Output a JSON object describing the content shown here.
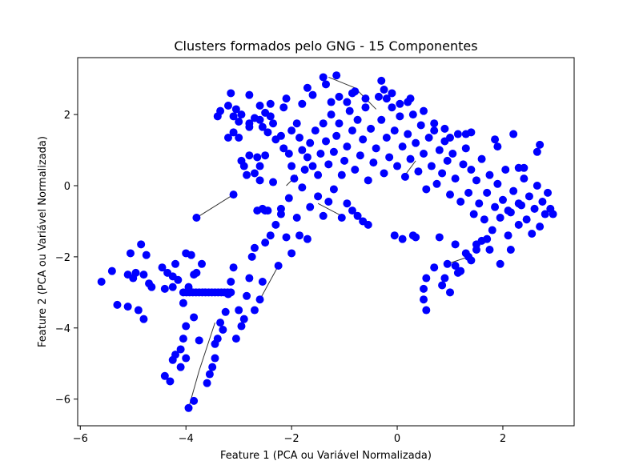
{
  "chart_data": {
    "type": "scatter",
    "title": "Clusters formados pelo GNG - 15 Componentes",
    "xlabel": "Feature 1 (PCA ou Variável Normalizada)",
    "ylabel": "Feature 2 (PCA ou Variável Normalizada)",
    "xlim": [
      -6.05,
      3.35
    ],
    "ylim": [
      -6.75,
      3.6
    ],
    "xticks": [
      -6,
      -4,
      -2,
      0,
      2
    ],
    "yticks": [
      -6,
      -4,
      -2,
      0,
      2
    ],
    "xtick_labels": [
      "−6",
      "−4",
      "−2",
      "0",
      "2"
    ],
    "ytick_labels": [
      "−6",
      "−4",
      "−2",
      "0",
      "2"
    ],
    "grid": false,
    "legend": "none",
    "marker_color": "#0000ff",
    "edge_color": "#333333",
    "points": [
      [
        -5.6,
        -2.7
      ],
      [
        -5.4,
        -2.4
      ],
      [
        -5.3,
        -3.35
      ],
      [
        -5.1,
        -2.5
      ],
      [
        -5.05,
        -1.9
      ],
      [
        -5.1,
        -3.4
      ],
      [
        -5.0,
        -2.6
      ],
      [
        -4.95,
        -2.45
      ],
      [
        -4.9,
        -3.5
      ],
      [
        -4.85,
        -1.65
      ],
      [
        -4.8,
        -2.5
      ],
      [
        -4.8,
        -3.75
      ],
      [
        -4.75,
        -1.95
      ],
      [
        -4.7,
        -2.75
      ],
      [
        -4.65,
        -2.85
      ],
      [
        -4.45,
        -2.3
      ],
      [
        -4.4,
        -2.9
      ],
      [
        -4.4,
        -5.35
      ],
      [
        -4.35,
        -2.45
      ],
      [
        -4.3,
        -5.5
      ],
      [
        -4.25,
        -2.85
      ],
      [
        -4.25,
        -2.55
      ],
      [
        -4.25,
        -4.9
      ],
      [
        -4.2,
        -2.2
      ],
      [
        -4.2,
        -4.75
      ],
      [
        -4.15,
        -2.65
      ],
      [
        -4.1,
        -4.6
      ],
      [
        -4.1,
        -5.1
      ],
      [
        -4.05,
        -3.3
      ],
      [
        -4.05,
        -4.3
      ],
      [
        -4.0,
        -1.9
      ],
      [
        -4.0,
        -3.95
      ],
      [
        -4.0,
        -4.85
      ],
      [
        -3.95,
        -2.85
      ],
      [
        -3.95,
        -6.25
      ],
      [
        -3.9,
        -1.95
      ],
      [
        -3.85,
        -2.5
      ],
      [
        -3.85,
        -3.7
      ],
      [
        -3.85,
        -6.05
      ],
      [
        -3.8,
        -2.45
      ],
      [
        -3.8,
        -0.9
      ],
      [
        -3.75,
        -4.35
      ],
      [
        -3.7,
        -2.2
      ],
      [
        -3.6,
        -5.55
      ],
      [
        -3.55,
        -5.3
      ],
      [
        -3.5,
        -5.1
      ],
      [
        -3.45,
        -4.85
      ],
      [
        -3.45,
        -4.45
      ],
      [
        -3.4,
        -4.3
      ],
      [
        -3.35,
        -3.85
      ],
      [
        -3.3,
        -4.05
      ],
      [
        -3.25,
        -3.55
      ],
      [
        -3.2,
        -3.05
      ],
      [
        -3.15,
        -2.7
      ],
      [
        -3.1,
        -2.3
      ],
      [
        -3.1,
        -0.25
      ],
      [
        -3.05,
        -4.3
      ],
      [
        -3.0,
        -3.5
      ],
      [
        -2.95,
        -3.95
      ],
      [
        -2.9,
        -3.75
      ],
      [
        -2.85,
        -3.1
      ],
      [
        -2.8,
        -2.6
      ],
      [
        -2.75,
        -2.0
      ],
      [
        -2.7,
        -1.75
      ],
      [
        -2.7,
        -3.5
      ],
      [
        -2.6,
        -3.2
      ],
      [
        -2.55,
        -2.7
      ],
      [
        -2.5,
        -1.6
      ],
      [
        -2.4,
        -1.4
      ],
      [
        -2.3,
        -1.1
      ],
      [
        -2.25,
        -2.25
      ],
      [
        -2.2,
        -0.8
      ],
      [
        -2.1,
        -1.45
      ],
      [
        -2.05,
        -0.35
      ],
      [
        -2.0,
        -1.9
      ],
      [
        -1.9,
        -0.9
      ],
      [
        -1.85,
        -1.4
      ],
      [
        -1.8,
        -0.05
      ],
      [
        -1.7,
        -1.5
      ],
      [
        -1.65,
        -0.6
      ],
      [
        -1.5,
        -0.3
      ],
      [
        -1.4,
        -0.85
      ],
      [
        -1.3,
        -0.45
      ],
      [
        -1.2,
        -0.1
      ],
      [
        -1.05,
        -0.9
      ],
      [
        -0.95,
        -0.5
      ],
      [
        -0.85,
        -0.7
      ],
      [
        -0.75,
        -0.85
      ],
      [
        -0.65,
        -1.0
      ],
      [
        -0.55,
        -1.1
      ],
      [
        -2.65,
        -0.7
      ],
      [
        -2.55,
        -0.65
      ],
      [
        -2.45,
        -0.7
      ],
      [
        -3.2,
        2.25
      ],
      [
        -3.35,
        2.1
      ],
      [
        -3.4,
        1.95
      ],
      [
        -3.1,
        1.95
      ],
      [
        -3.0,
        1.8
      ],
      [
        -2.95,
        2.0
      ],
      [
        -2.8,
        1.65
      ],
      [
        -2.8,
        1.75
      ],
      [
        -2.7,
        1.9
      ],
      [
        -2.6,
        1.85
      ],
      [
        -2.55,
        1.65
      ],
      [
        -2.45,
        1.5
      ],
      [
        -2.4,
        1.95
      ],
      [
        -2.35,
        1.75
      ],
      [
        -2.3,
        1.3
      ],
      [
        -2.2,
        1.4
      ],
      [
        -2.15,
        1.05
      ],
      [
        -2.05,
        0.9
      ],
      [
        -2.0,
        0.55
      ],
      [
        -2.0,
        1.55
      ],
      [
        -1.95,
        0.2
      ],
      [
        -1.9,
        1.75
      ],
      [
        -1.85,
        1.35
      ],
      [
        -1.8,
        1.0
      ],
      [
        -1.75,
        0.45
      ],
      [
        -1.7,
        0.8
      ],
      [
        -1.65,
        1.2
      ],
      [
        -1.6,
        0.55
      ],
      [
        -1.55,
        1.55
      ],
      [
        -1.5,
        0.3
      ],
      [
        -1.45,
        0.9
      ],
      [
        -1.4,
        1.75
      ],
      [
        -1.35,
        1.25
      ],
      [
        -1.3,
        0.6
      ],
      [
        -1.25,
        2.0
      ],
      [
        -1.2,
        0.95
      ],
      [
        -1.15,
        1.4
      ],
      [
        -1.1,
        1.75
      ],
      [
        -1.05,
        0.3
      ],
      [
        -1.0,
        0.7
      ],
      [
        -0.95,
        1.1
      ],
      [
        -0.9,
        2.1
      ],
      [
        -0.85,
        1.55
      ],
      [
        -0.8,
        0.45
      ],
      [
        -0.75,
        1.85
      ],
      [
        -0.7,
        0.85
      ],
      [
        -0.65,
        1.3
      ],
      [
        -0.6,
        2.2
      ],
      [
        -0.55,
        0.15
      ],
      [
        -0.5,
        1.6
      ],
      [
        -0.45,
        0.65
      ],
      [
        -0.4,
        1.05
      ],
      [
        -0.35,
        2.5
      ],
      [
        -0.3,
        1.85
      ],
      [
        -0.25,
        0.35
      ],
      [
        -0.2,
        1.35
      ],
      [
        -0.15,
        0.8
      ],
      [
        -0.1,
        2.2
      ],
      [
        -0.05,
        1.55
      ],
      [
        0.0,
        0.55
      ],
      [
        0.05,
        1.95
      ],
      [
        0.1,
        1.1
      ],
      [
        0.15,
        0.25
      ],
      [
        0.2,
        1.45
      ],
      [
        0.25,
        0.75
      ],
      [
        0.3,
        2.0
      ],
      [
        0.35,
        1.2
      ],
      [
        0.4,
        0.4
      ],
      [
        0.45,
        1.7
      ],
      [
        0.5,
        0.9
      ],
      [
        0.55,
        -0.1
      ],
      [
        0.6,
        1.35
      ],
      [
        0.65,
        0.55
      ],
      [
        0.7,
        1.55
      ],
      [
        0.75,
        0.05
      ],
      [
        0.8,
        1.0
      ],
      [
        0.85,
        0.35
      ],
      [
        0.9,
        1.25
      ],
      [
        0.95,
        0.7
      ],
      [
        1.0,
        -0.25
      ],
      [
        1.05,
        0.9
      ],
      [
        1.1,
        0.2
      ],
      [
        1.15,
        1.45
      ],
      [
        1.2,
        -0.45
      ],
      [
        1.25,
        0.6
      ],
      [
        1.3,
        1.05
      ],
      [
        1.35,
        -0.2
      ],
      [
        1.4,
        0.45
      ],
      [
        1.45,
        -0.8
      ],
      [
        1.5,
        0.15
      ],
      [
        1.55,
        -0.5
      ],
      [
        1.6,
        0.75
      ],
      [
        1.65,
        -0.95
      ],
      [
        1.7,
        -0.2
      ],
      [
        1.75,
        0.3
      ],
      [
        1.8,
        -1.25
      ],
      [
        1.85,
        -0.6
      ],
      [
        1.9,
        0.05
      ],
      [
        1.95,
        -0.9
      ],
      [
        2.0,
        -0.4
      ],
      [
        2.05,
        0.45
      ],
      [
        2.1,
        -1.4
      ],
      [
        2.15,
        -0.75
      ],
      [
        2.2,
        -0.15
      ],
      [
        2.3,
        -1.1
      ],
      [
        2.35,
        -0.55
      ],
      [
        2.4,
        0.2
      ],
      [
        2.45,
        -0.95
      ],
      [
        2.5,
        -0.3
      ],
      [
        2.55,
        -1.35
      ],
      [
        2.6,
        -0.65
      ],
      [
        2.65,
        0.0
      ],
      [
        2.7,
        -1.15
      ],
      [
        2.75,
        -0.45
      ],
      [
        2.8,
        -0.8
      ],
      [
        2.85,
        -0.2
      ],
      [
        2.9,
        -0.65
      ],
      [
        2.95,
        -0.8
      ],
      [
        2.2,
        1.45
      ],
      [
        2.65,
        0.95
      ],
      [
        2.7,
        1.15
      ],
      [
        2.3,
        0.5
      ],
      [
        2.4,
        0.5
      ],
      [
        1.85,
        1.3
      ],
      [
        1.9,
        1.1
      ],
      [
        1.4,
        1.5
      ],
      [
        1.3,
        1.45
      ],
      [
        1.0,
        1.35
      ],
      [
        0.9,
        1.6
      ],
      [
        0.7,
        1.75
      ],
      [
        0.5,
        2.1
      ],
      [
        -0.8,
        2.65
      ],
      [
        -0.85,
        2.6
      ],
      [
        -1.15,
        3.1
      ],
      [
        -1.4,
        3.05
      ],
      [
        -1.35,
        2.85
      ],
      [
        -1.6,
        2.55
      ],
      [
        -1.7,
        2.75
      ],
      [
        -1.8,
        2.3
      ],
      [
        -2.1,
        2.45
      ],
      [
        -2.15,
        2.2
      ],
      [
        -2.4,
        2.3
      ],
      [
        -2.8,
        2.55
      ],
      [
        -3.15,
        2.6
      ],
      [
        -0.3,
        2.95
      ],
      [
        -0.25,
        2.7
      ],
      [
        -0.2,
        2.45
      ],
      [
        -0.1,
        2.6
      ],
      [
        0.05,
        2.3
      ],
      [
        0.2,
        2.35
      ],
      [
        0.25,
        2.45
      ],
      [
        -0.6,
        2.45
      ],
      [
        -0.95,
        2.35
      ],
      [
        -1.1,
        2.5
      ],
      [
        -1.25,
        2.35
      ],
      [
        0.35,
        -1.45
      ],
      [
        0.3,
        -1.4
      ],
      [
        0.1,
        -1.5
      ],
      [
        -0.05,
        -1.4
      ],
      [
        0.55,
        -2.6
      ],
      [
        0.5,
        -3.2
      ],
      [
        0.5,
        -2.9
      ],
      [
        0.55,
        -3.5
      ],
      [
        0.7,
        -2.3
      ],
      [
        0.85,
        -2.8
      ],
      [
        0.9,
        -2.6
      ],
      [
        0.95,
        -2.2
      ],
      [
        1.0,
        -3.0
      ],
      [
        1.1,
        -2.25
      ],
      [
        1.15,
        -2.45
      ],
      [
        1.2,
        -2.4
      ],
      [
        1.3,
        -1.9
      ],
      [
        1.35,
        -2.0
      ],
      [
        1.4,
        -2.1
      ],
      [
        0.8,
        -1.45
      ],
      [
        1.5,
        -1.8
      ],
      [
        1.7,
        -1.5
      ],
      [
        1.75,
        -1.8
      ],
      [
        1.95,
        -2.2
      ],
      [
        2.15,
        -1.8
      ],
      [
        2.3,
        -0.5
      ],
      [
        2.1,
        -0.7
      ],
      [
        1.1,
        -1.65
      ],
      [
        1.5,
        -1.65
      ],
      [
        1.6,
        -1.55
      ],
      [
        -2.5,
        -0.7
      ],
      [
        -2.2,
        -0.65
      ],
      [
        -2.35,
        0.1
      ],
      [
        -2.6,
        0.15
      ],
      [
        -2.85,
        0.3
      ],
      [
        -2.9,
        0.55
      ],
      [
        -2.8,
        0.85
      ],
      [
        -2.65,
        0.8
      ],
      [
        -2.5,
        0.85
      ],
      [
        -2.95,
        0.7
      ],
      [
        -3.2,
        1.35
      ],
      [
        -3.1,
        1.5
      ],
      [
        -3.0,
        1.35
      ],
      [
        -2.7,
        0.35
      ],
      [
        -2.6,
        0.55
      ],
      [
        -3.05,
        2.15
      ],
      [
        -2.5,
        2.05
      ],
      [
        -2.6,
        2.25
      ]
    ],
    "dense_lines": [
      {
        "y": -3.0,
        "x_range": [
          -4.05,
          -3.1
        ]
      }
    ],
    "edges": [
      [
        [
          -3.8,
          -0.9
        ],
        [
          -3.1,
          -0.25
        ]
      ],
      [
        [
          -3.95,
          -6.25
        ],
        [
          -3.75,
          -5.2
        ]
      ],
      [
        [
          -3.75,
          -5.2
        ],
        [
          -3.45,
          -3.85
        ]
      ],
      [
        [
          -2.6,
          -3.2
        ],
        [
          -2.25,
          -2.25
        ]
      ],
      [
        [
          -1.3,
          3.05
        ],
        [
          -0.8,
          2.75
        ]
      ],
      [
        [
          -0.8,
          2.75
        ],
        [
          -0.4,
          2.15
        ]
      ],
      [
        [
          0.95,
          -2.2
        ],
        [
          1.35,
          -2.0
        ]
      ],
      [
        [
          -1.5,
          -0.5
        ],
        [
          -1.05,
          -0.85
        ]
      ],
      [
        [
          0.1,
          0.2
        ],
        [
          0.35,
          0.7
        ]
      ],
      [
        [
          -2.1,
          0.0
        ],
        [
          -1.9,
          0.3
        ]
      ]
    ]
  }
}
